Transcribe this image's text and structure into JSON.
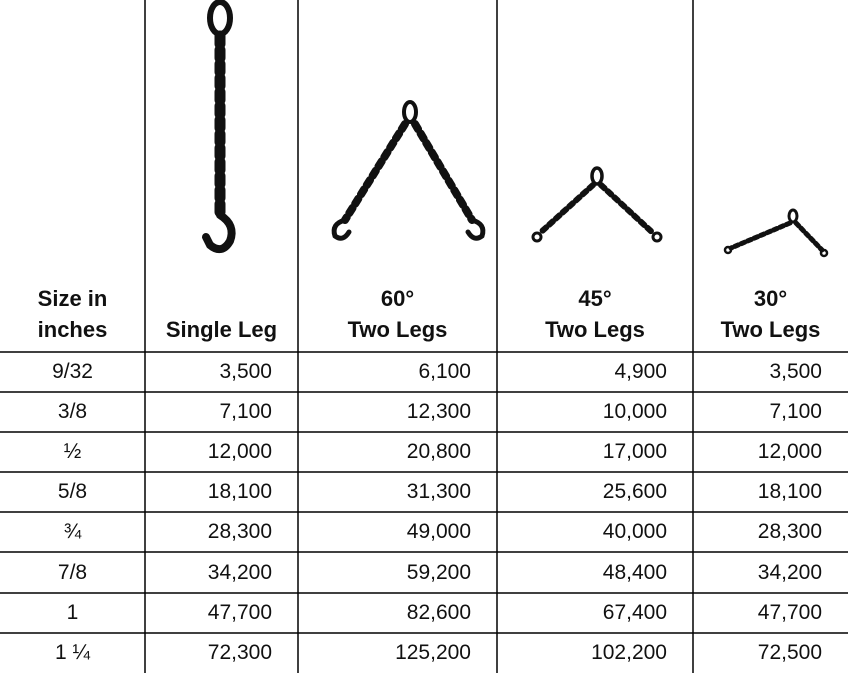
{
  "table": {
    "header": [
      [
        "Size in",
        "inches"
      ],
      [
        "Single Leg"
      ],
      [
        "60°",
        "Two Legs"
      ],
      [
        "45°",
        "Two Legs"
      ],
      [
        "30°",
        "Two Legs"
      ]
    ],
    "rows": [
      [
        "9/32",
        "3,500",
        "6,100",
        "4,900",
        "3,500"
      ],
      [
        "3/8",
        "7,100",
        "12,300",
        "10,000",
        "7,100"
      ],
      [
        "½",
        "12,000",
        "20,800",
        "17,000",
        "12,000"
      ],
      [
        "5/8",
        "18,100",
        "31,300",
        "25,600",
        "18,100"
      ],
      [
        "¾",
        "28,300",
        "49,000",
        "40,000",
        "28,300"
      ],
      [
        "7/8",
        "34,200",
        "59,200",
        "48,400",
        "34,200"
      ],
      [
        "1",
        "47,700",
        "82,600",
        "67,400",
        "47,700"
      ],
      [
        "1 ¼",
        "72,300",
        "125,200",
        "102,200",
        "72,500"
      ]
    ]
  }
}
